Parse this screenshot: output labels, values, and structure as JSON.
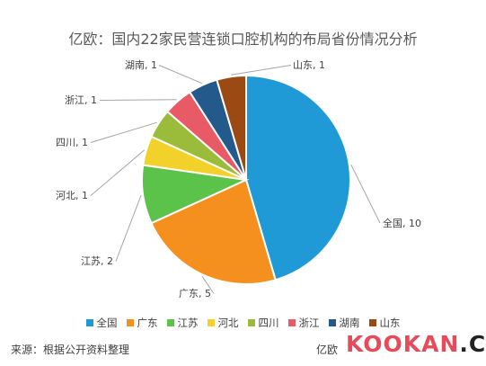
{
  "chart_data": {
    "type": "pie",
    "title": "亿欧：国内22家民营连锁口腔机构的布局省份情况分析",
    "slices": [
      {
        "name": "全国",
        "value": 10,
        "label": "全国, 10",
        "color": "#1f9ad6"
      },
      {
        "name": "广东",
        "value": 5,
        "label": "广东, 5",
        "color": "#f5901f"
      },
      {
        "name": "江苏",
        "value": 2,
        "label": "江苏, 2",
        "color": "#5cc34a"
      },
      {
        "name": "河北",
        "value": 1,
        "label": "河北, 1",
        "color": "#f2d12a"
      },
      {
        "name": "四川",
        "value": 1,
        "label": "四川, 1",
        "color": "#9bbc3b"
      },
      {
        "name": "浙江",
        "value": 1,
        "label": "浙江, 1",
        "color": "#e85a66"
      },
      {
        "name": "湖南",
        "value": 1,
        "label": "湖南, 1",
        "color": "#24598c"
      },
      {
        "name": "山东",
        "value": 1,
        "label": "山东, 1",
        "color": "#9c4a14"
      }
    ],
    "legend_position": "bottom"
  },
  "footer": {
    "source": "来源：根据公开资料整理",
    "brand": "亿欧"
  },
  "watermark": {
    "main": "KOOKAN",
    "suffix": ".CN"
  }
}
